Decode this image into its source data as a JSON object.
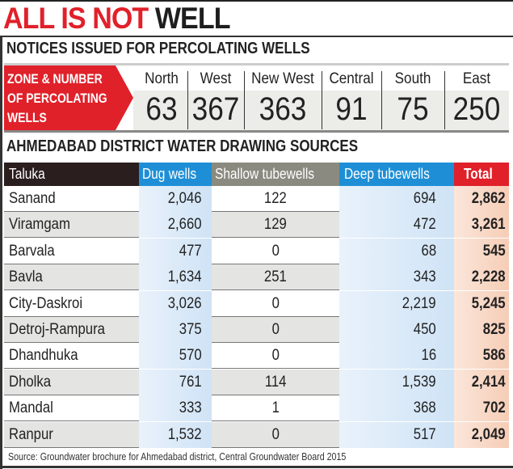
{
  "title": {
    "red": "ALL IS NOT",
    "black": "WELL"
  },
  "notices": {
    "heading": "NOTICES ISSUED FOR PERCOLATING WELLS",
    "label_lines": [
      "ZONE & NUMBER",
      "OF PERCOLATING",
      "WELLS"
    ],
    "zones": [
      {
        "name": "North",
        "value": "63"
      },
      {
        "name": "West",
        "value": "367"
      },
      {
        "name": "New West",
        "value": "363"
      },
      {
        "name": "Central",
        "value": "91"
      },
      {
        "name": "South",
        "value": "75"
      },
      {
        "name": "East",
        "value": "250"
      }
    ]
  },
  "colors": {
    "red": "#e0212a",
    "blue_header": "#1e8fd6",
    "gray_header": "#8a8a80",
    "dark_header": "#2b1e1e",
    "total_header": "#e0212a"
  },
  "chart_data": {
    "type": "table",
    "title": "AHMEDABAD DISTRICT WATER DRAWING SOURCES",
    "columns": [
      "Taluka",
      "Dug wells",
      "Shallow tubewells",
      "Deep tubewells",
      "Total"
    ],
    "rows": [
      [
        "Sanand",
        "2,046",
        "122",
        "694",
        "2,862"
      ],
      [
        "Viramgam",
        "2,660",
        "129",
        "472",
        "3,261"
      ],
      [
        "Barvala",
        "477",
        "0",
        "68",
        "545"
      ],
      [
        "Bavla",
        "1,634",
        "251",
        "343",
        "2,228"
      ],
      [
        "City-Daskroi",
        "3,026",
        "0",
        "2,219",
        "5,245"
      ],
      [
        "Detroj-Rampura",
        "375",
        "0",
        "450",
        "825"
      ],
      [
        "Dhandhuka",
        "570",
        "0",
        "16",
        "586"
      ],
      [
        "Dholka",
        "761",
        "114",
        "1,539",
        "2,414"
      ],
      [
        "Mandal",
        "333",
        "1",
        "368",
        "702"
      ],
      [
        "Ranpur",
        "1,532",
        "0",
        "517",
        "2,049"
      ]
    ],
    "source": "Source: Groundwater brochure for Ahmedabad district, Central Groundwater Board 2015"
  }
}
